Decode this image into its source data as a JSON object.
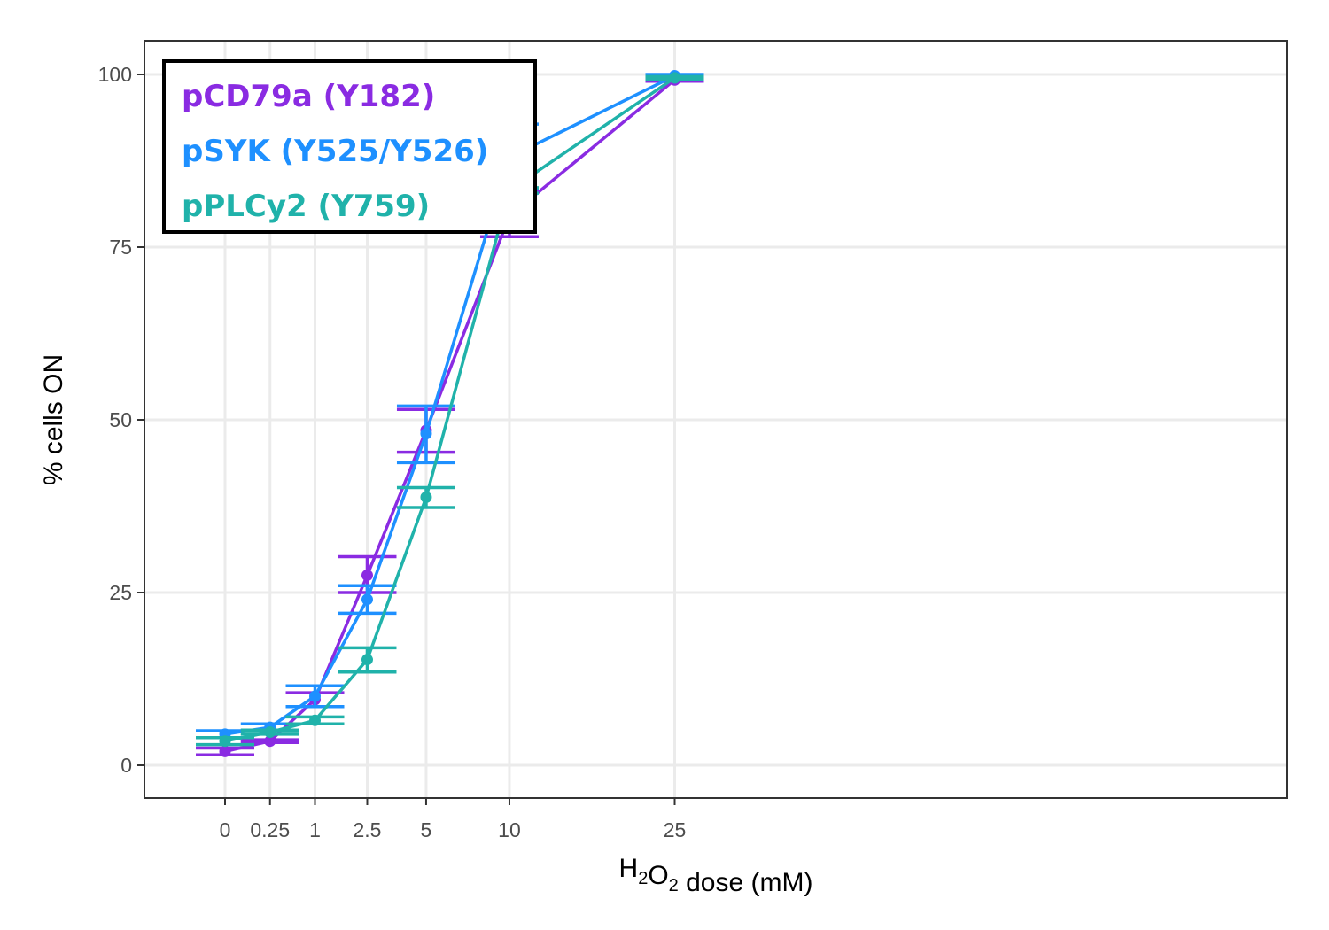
{
  "chart_data": {
    "type": "line",
    "xlabel_parts": [
      {
        "text": "H",
        "sub": false
      },
      {
        "text": "2",
        "sub": true
      },
      {
        "text": "O",
        "sub": false
      },
      {
        "text": "2",
        "sub": true
      },
      {
        "text": " dose (mM)",
        "sub": false
      }
    ],
    "ylabel": "% cells ON",
    "x_ticks": [
      "0",
      "0.25",
      "1",
      "2.5",
      "5",
      "10",
      "25"
    ],
    "y_ticks": [
      0,
      25,
      50,
      75,
      100
    ],
    "ylim": [
      -5,
      105
    ],
    "x_scale": "square-root",
    "grid": true,
    "legend_position": "top-left",
    "series": [
      {
        "name": "pCD79a (Y182)",
        "color": "#8A2BE2",
        "x": [
          0,
          0.25,
          1,
          2.5,
          5,
          10,
          25
        ],
        "y": [
          2.0,
          3.5,
          9.5,
          27.5,
          48.5,
          79.5,
          99.2
        ],
        "err_low": [
          1.5,
          3.3,
          8.5,
          25.0,
          45.3,
          76.5,
          99.0
        ],
        "err_high": [
          2.5,
          3.7,
          10.5,
          30.2,
          51.5,
          83.0,
          99.4
        ]
      },
      {
        "name": "pSYK (Y525/Y526)",
        "color": "#1E90FF",
        "x": [
          0,
          0.25,
          1,
          2.5,
          5,
          10,
          25
        ],
        "y": [
          4.5,
          5.5,
          10.0,
          24.0,
          48.0,
          88.0,
          99.8
        ],
        "err_low": [
          4.0,
          5.0,
          8.5,
          22.0,
          43.8,
          83.5,
          99.5
        ],
        "err_high": [
          5.0,
          6.0,
          11.5,
          26.0,
          52.0,
          92.8,
          100.0
        ]
      },
      {
        "name": "pPLCy2 (Y759)",
        "color": "#20B2AA",
        "x": [
          0,
          0.25,
          1,
          2.5,
          5,
          10,
          25
        ],
        "y": [
          3.5,
          4.8,
          6.5,
          15.3,
          38.8,
          83.2,
          99.5
        ],
        "err_low": [
          3.0,
          4.5,
          6.0,
          13.5,
          37.3,
          82.8,
          99.3
        ],
        "err_high": [
          4.0,
          5.1,
          7.0,
          17.0,
          40.2,
          83.6,
          99.7
        ]
      }
    ]
  },
  "colors": {
    "grid": "#ebebeb",
    "panel_border": "#333333",
    "tick_text": "#4d4d4d",
    "legend_border": "#000000"
  }
}
